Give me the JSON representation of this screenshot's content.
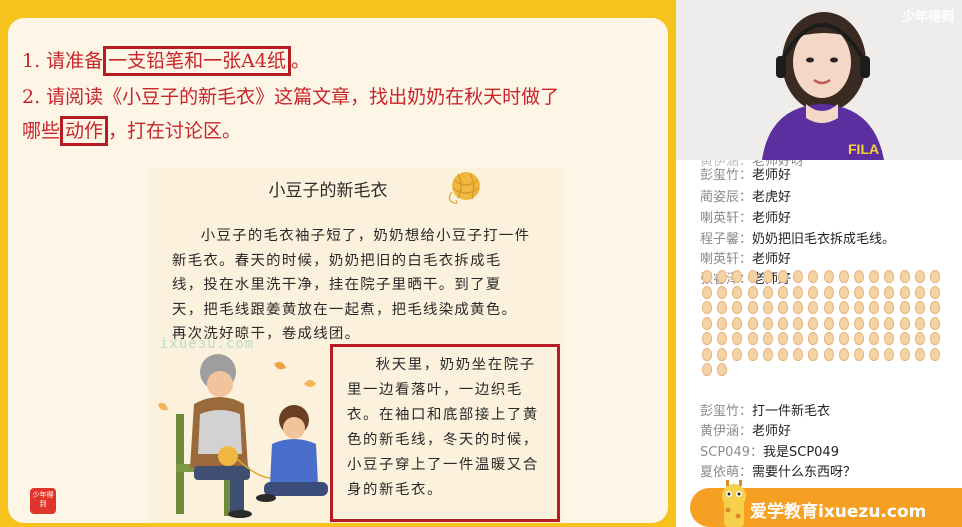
{
  "slide": {
    "instruction1_num": "1. 请准备",
    "instruction1_hl": "一支铅笔和一张A4纸",
    "instruction1_end": "。",
    "instruction2_line1": "2. 请阅读《小豆子的新毛衣》这篇文章，找出奶奶在秋天时做了",
    "instruction2_pre": "哪些",
    "instruction2_hl": "动作",
    "instruction2_end": "，打在讨论区。",
    "story_title": "小豆子的新毛衣",
    "story_text": "小豆子的毛衣袖子短了，奶奶想给小豆子打一件新毛衣。春天的时候，奶奶把旧的白毛衣拆成毛线，投在水里洗干净，挂在院子里晒干。到了夏天，把毛线跟姜黄放在一起煮，把毛线染成黄色。再次洗好晾干，卷成线团。",
    "story_quote": "秋天里，奶奶坐在院子里一边看落叶，一边织毛衣。在袖口和底部接上了黄色的新毛线，冬天的时候，小豆子穿上了一件温暖又合身的新毛衣。",
    "watermark": "ixueзu.com",
    "logo_text": "少年得到"
  },
  "video": {
    "brand": "少年得到"
  },
  "chat": {
    "partial": {
      "name": "黄伊涵：",
      "text": "老师好呀"
    },
    "messages": [
      {
        "name": "彭玺竹：",
        "text": "老师好"
      },
      {
        "name": "蔺姿辰：",
        "text": "老虎好"
      },
      {
        "name": "喇英轩：",
        "text": "老师好"
      },
      {
        "name": "程子馨：",
        "text": "奶奶把旧毛衣拆成毛线。"
      },
      {
        "name": "喇英轩：",
        "text": "老师好"
      },
      {
        "name": "张睿泽：",
        "text": "老师好"
      }
    ],
    "messages_after": [
      {
        "name": "彭玺竹：",
        "text": "打一件新毛衣"
      },
      {
        "name": "黄伊涵：",
        "text": "老师好"
      },
      {
        "name": "SCP049：",
        "text": "我是SCP049"
      },
      {
        "name": "夏依萌：",
        "text": "需要什么东西呀？"
      }
    ]
  },
  "promo": {
    "text": "爱学教育ixuezu.com"
  },
  "colors": {
    "slide_bg": "#f6c21c",
    "highlight": "#b81c22",
    "instruction_red": "#c8252a",
    "promo": "#f5a023"
  }
}
